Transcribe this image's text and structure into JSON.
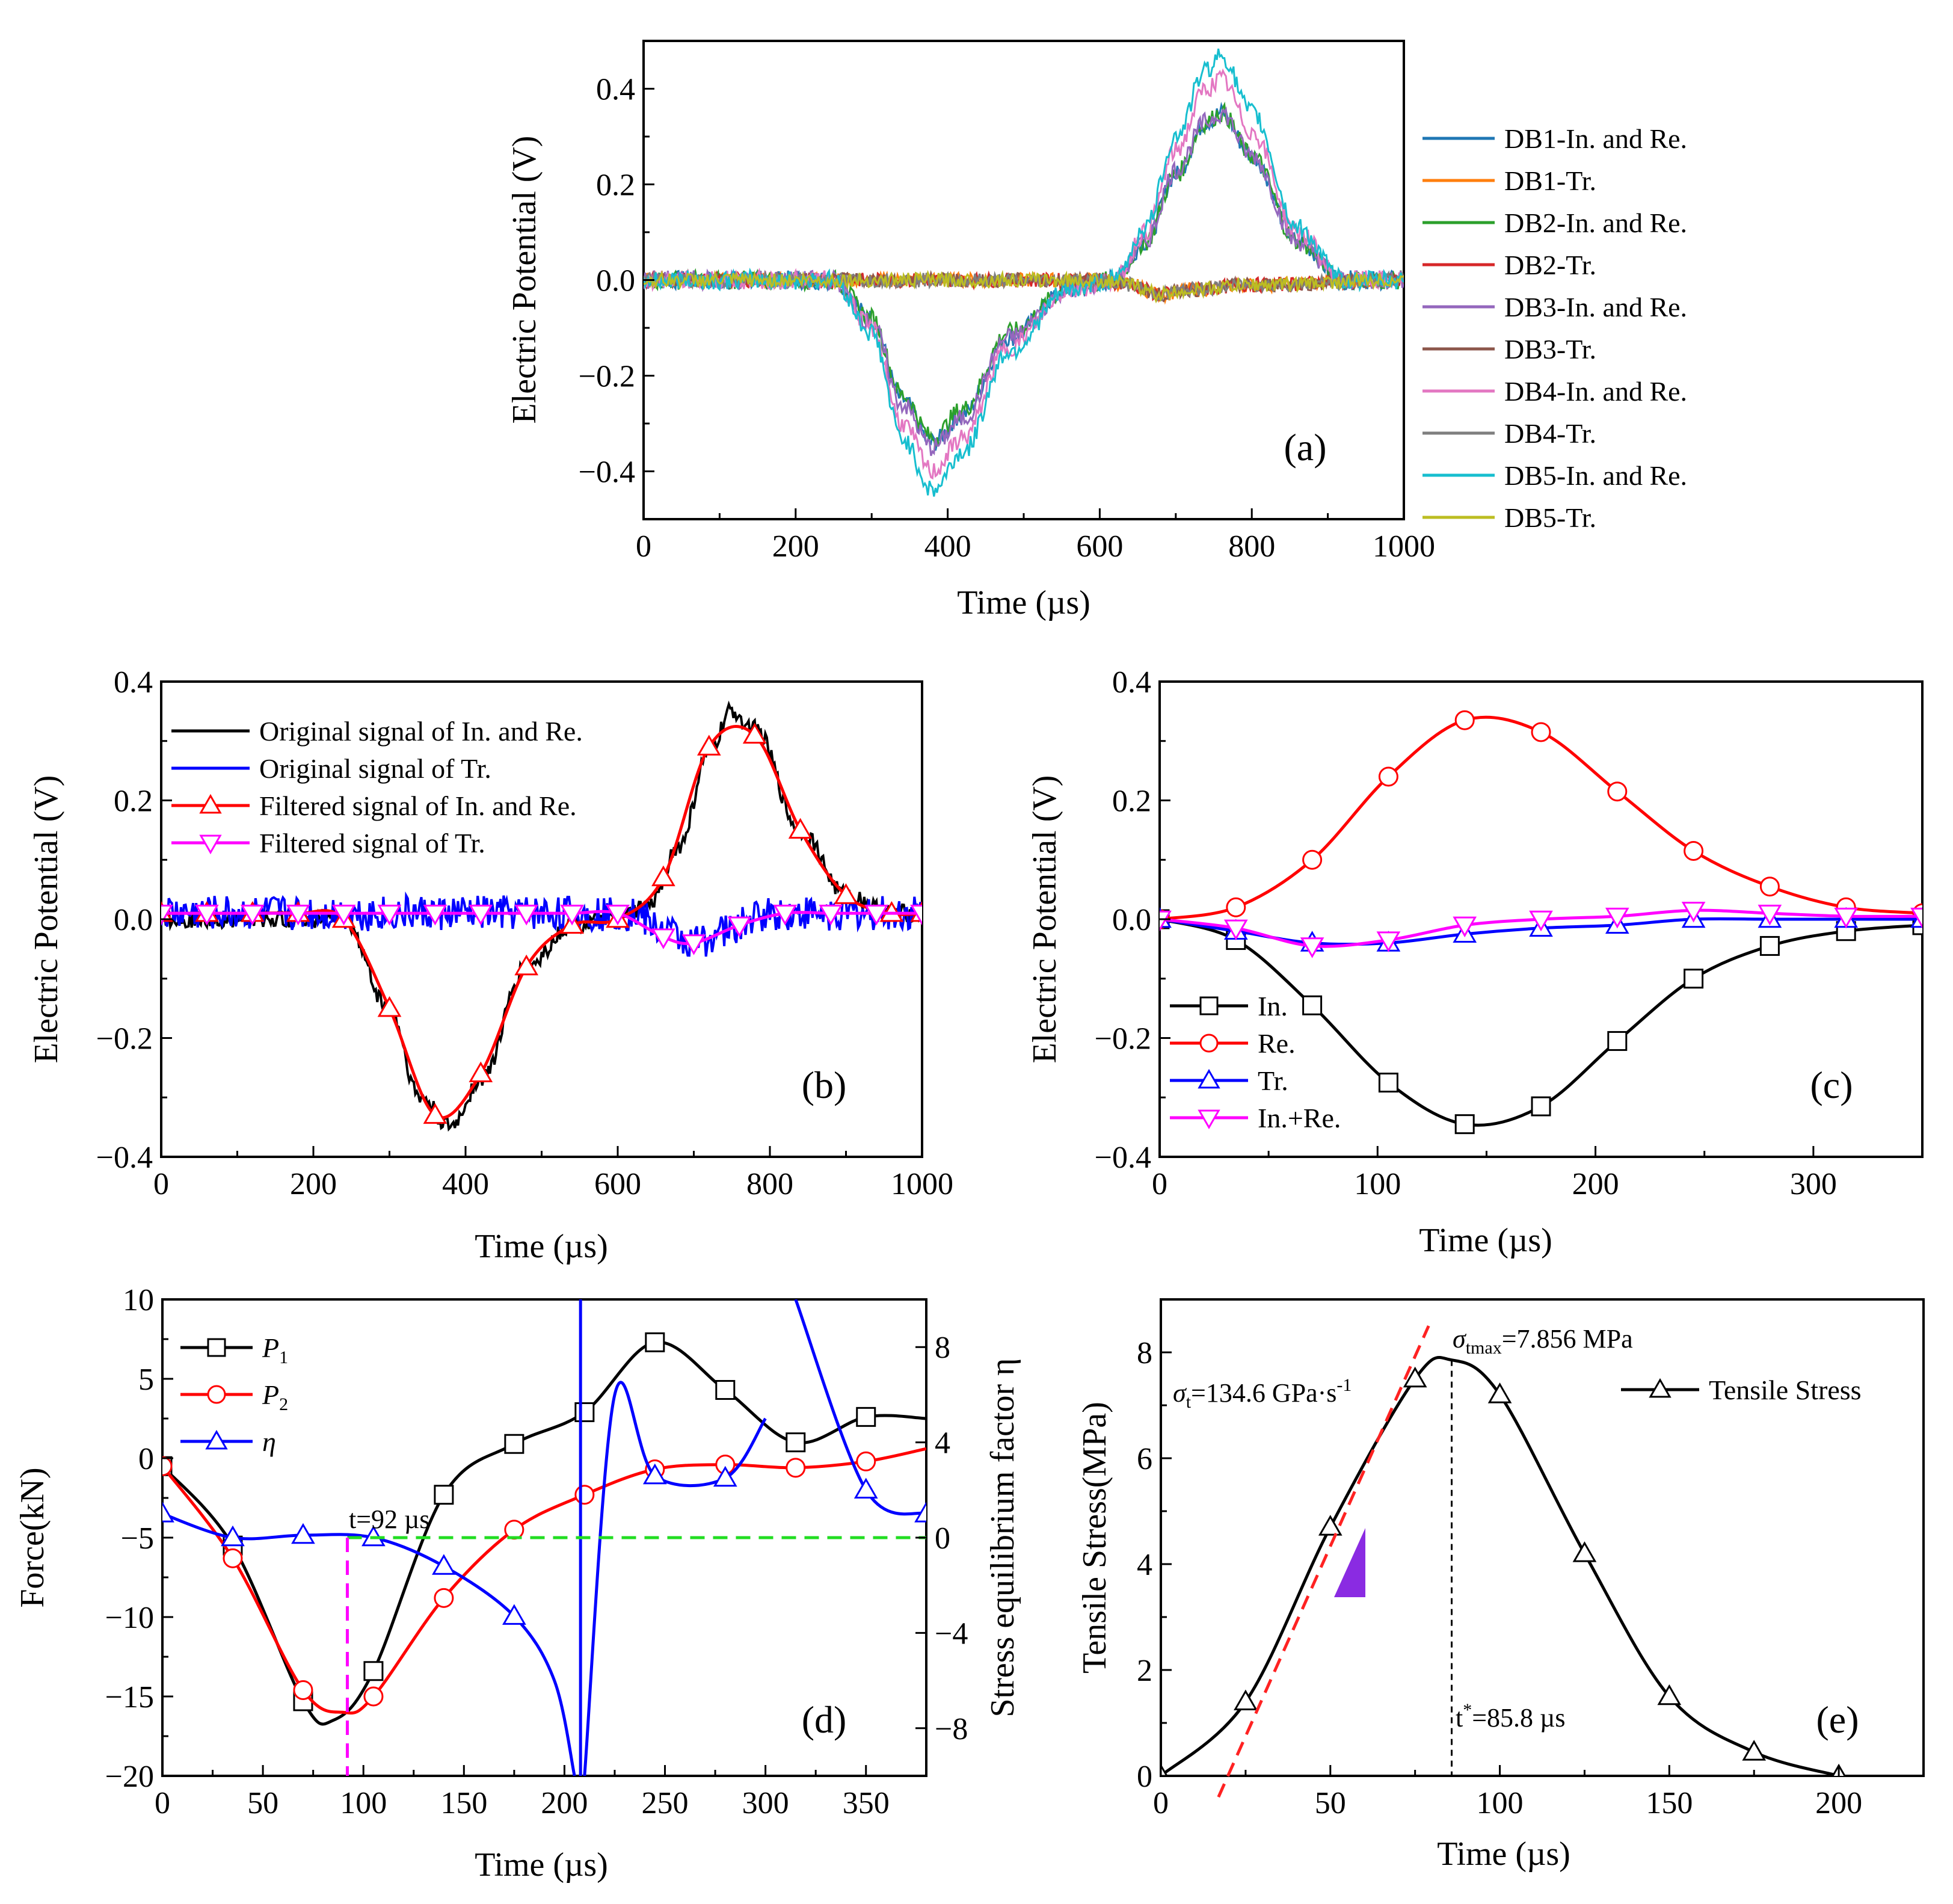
{
  "chart_data": [
    {
      "id": "a",
      "type": "line",
      "panel_label": "(a)",
      "xlabel": "Time (µs)",
      "ylabel": "Electric Potential (V)",
      "xlim": [
        0,
        1000
      ],
      "ylim": [
        -0.5,
        0.5
      ],
      "xticks": [
        "0",
        "200",
        "400",
        "600",
        "800",
        "1000"
      ],
      "yticks": [
        "−0.4",
        "−0.2",
        "0.0",
        "0.2",
        "0.4"
      ],
      "legend_position": "outside-right",
      "series": [
        {
          "name": "DB1-In. and Re.",
          "color": "#1f77b4",
          "x": [
            0,
            250,
            300,
            340,
            380,
            420,
            480,
            560,
            620,
            660,
            700,
            740,
            760,
            800,
            860,
            920,
            1000
          ],
          "y": [
            0,
            0,
            -0.08,
            -0.25,
            -0.34,
            -0.28,
            -0.12,
            -0.02,
            0,
            0.08,
            0.22,
            0.33,
            0.35,
            0.26,
            0.08,
            0,
            0
          ]
        },
        {
          "name": "DB1-Tr.",
          "color": "#ff7f0e",
          "x": [
            0,
            600,
            640,
            680,
            720,
            800,
            1000
          ],
          "y": [
            0,
            0,
            -0.01,
            -0.03,
            -0.02,
            -0.01,
            0
          ]
        },
        {
          "name": "DB2-In. and Re.",
          "color": "#2ca02c",
          "x": [
            0,
            250,
            300,
            340,
            380,
            420,
            480,
            560,
            620,
            660,
            700,
            740,
            760,
            800,
            860,
            920,
            1000
          ],
          "y": [
            0,
            0,
            -0.08,
            -0.24,
            -0.33,
            -0.27,
            -0.11,
            -0.02,
            0,
            0.08,
            0.22,
            0.33,
            0.35,
            0.26,
            0.08,
            0,
            0
          ]
        },
        {
          "name": "DB2-Tr.",
          "color": "#d62728",
          "x": [
            0,
            600,
            640,
            680,
            720,
            800,
            1000
          ],
          "y": [
            0,
            0,
            -0.01,
            -0.03,
            -0.02,
            -0.01,
            0
          ]
        },
        {
          "name": "DB3-In. and Re.",
          "color": "#9467bd",
          "x": [
            0,
            250,
            300,
            340,
            380,
            420,
            480,
            560,
            620,
            660,
            700,
            740,
            760,
            800,
            860,
            920,
            1000
          ],
          "y": [
            0,
            0,
            -0.09,
            -0.26,
            -0.35,
            -0.29,
            -0.12,
            -0.02,
            0,
            0.08,
            0.23,
            0.33,
            0.35,
            0.26,
            0.08,
            0,
            0
          ]
        },
        {
          "name": "DB3-Tr.",
          "color": "#8c564b",
          "x": [
            0,
            600,
            640,
            680,
            720,
            800,
            1000
          ],
          "y": [
            0,
            0,
            -0.01,
            -0.03,
            -0.02,
            -0.01,
            0
          ]
        },
        {
          "name": "DB4-In. and Re.",
          "color": "#e377c2",
          "x": [
            0,
            250,
            300,
            340,
            380,
            420,
            480,
            560,
            620,
            660,
            700,
            740,
            760,
            800,
            860,
            920,
            1000
          ],
          "y": [
            0,
            0,
            -0.1,
            -0.3,
            -0.4,
            -0.33,
            -0.14,
            -0.02,
            0,
            0.1,
            0.27,
            0.4,
            0.42,
            0.31,
            0.1,
            0,
            0
          ]
        },
        {
          "name": "DB4-Tr.",
          "color": "#7f7f7f",
          "x": [
            0,
            600,
            640,
            680,
            720,
            800,
            1000
          ],
          "y": [
            0,
            0,
            -0.01,
            -0.03,
            -0.02,
            -0.01,
            0
          ]
        },
        {
          "name": "DB5-In. and Re.",
          "color": "#17becf",
          "x": [
            0,
            250,
            300,
            340,
            380,
            420,
            480,
            560,
            620,
            660,
            700,
            740,
            760,
            800,
            860,
            920,
            1000
          ],
          "y": [
            0,
            0,
            -0.11,
            -0.33,
            -0.44,
            -0.36,
            -0.15,
            -0.02,
            0,
            0.11,
            0.3,
            0.44,
            0.47,
            0.35,
            0.11,
            0,
            0
          ]
        },
        {
          "name": "DB5-Tr.",
          "color": "#bcbd22",
          "x": [
            0,
            600,
            640,
            680,
            720,
            800,
            1000
          ],
          "y": [
            0,
            0,
            -0.01,
            -0.03,
            -0.02,
            -0.01,
            0
          ]
        }
      ]
    },
    {
      "id": "b",
      "type": "line",
      "panel_label": "(b)",
      "xlabel": "Time (µs)",
      "ylabel": "Electric Potential (V)",
      "xlim": [
        0,
        1000
      ],
      "ylim": [
        -0.4,
        0.4
      ],
      "xticks": [
        "0",
        "200",
        "400",
        "600",
        "800",
        "1000"
      ],
      "yticks": [
        "−0.4",
        "−0.2",
        "0.0",
        "0.2",
        "0.4"
      ],
      "legend_position": "top-left",
      "series": [
        {
          "name": "Original signal of In. and Re.",
          "color": "#000000",
          "marker": "none",
          "x": [
            0,
            240,
            300,
            340,
            380,
            420,
            480,
            540,
            600,
            640,
            680,
            720,
            750,
            780,
            840,
            900,
            960,
            1000
          ],
          "y": [
            0,
            0,
            -0.15,
            -0.3,
            -0.35,
            -0.27,
            -0.08,
            -0.01,
            0,
            0.02,
            0.12,
            0.28,
            0.35,
            0.32,
            0.15,
            0.04,
            0.01,
            0.01
          ]
        },
        {
          "name": "Original signal of Tr.",
          "color": "#0000ff",
          "marker": "none",
          "x": [
            0,
            620,
            660,
            700,
            740,
            800,
            1000
          ],
          "y": [
            0.01,
            0.01,
            -0.02,
            -0.04,
            -0.02,
            0.01,
            0.01
          ]
        },
        {
          "name": "Filtered signal of In. and Re.",
          "color": "#ff0000",
          "marker": "triangle-up",
          "x": [
            0,
            60,
            120,
            180,
            240,
            300,
            360,
            420,
            480,
            540,
            600,
            660,
            720,
            780,
            840,
            900,
            960,
            1000
          ],
          "y": [
            0.01,
            0.01,
            0.01,
            0.01,
            0.0,
            -0.15,
            -0.33,
            -0.26,
            -0.08,
            -0.01,
            0.0,
            0.07,
            0.29,
            0.31,
            0.15,
            0.04,
            0.01,
            0.01
          ]
        },
        {
          "name": "Filtered signal of Tr.",
          "color": "#ff00ff",
          "marker": "triangle-down",
          "x": [
            0,
            60,
            120,
            180,
            240,
            300,
            360,
            420,
            480,
            540,
            600,
            660,
            700,
            760,
            820,
            880,
            940,
            1000
          ],
          "y": [
            0.01,
            0.01,
            0.01,
            0.01,
            0.01,
            0.01,
            0.01,
            0.01,
            0.01,
            0.01,
            0.01,
            -0.03,
            -0.04,
            -0.01,
            0.01,
            0.01,
            0.01,
            0.01
          ]
        }
      ]
    },
    {
      "id": "c",
      "type": "line",
      "panel_label": "(c)",
      "xlabel": "Time (µs)",
      "ylabel": "Electric Potential (V)",
      "xlim": [
        0,
        350
      ],
      "ylim": [
        -0.4,
        0.4
      ],
      "xticks": [
        "0",
        "100",
        "200",
        "300"
      ],
      "yticks": [
        "−0.4",
        "−0.2",
        "0.0",
        "0.2",
        "0.4"
      ],
      "legend_position": "bottom-left",
      "series": [
        {
          "name": "In.",
          "color": "#000000",
          "marker": "square",
          "x": [
            0,
            35,
            70,
            105,
            140,
            175,
            210,
            245,
            280,
            315,
            350
          ],
          "y": [
            0,
            -0.035,
            -0.145,
            -0.275,
            -0.345,
            -0.315,
            -0.205,
            -0.1,
            -0.045,
            -0.02,
            -0.01
          ]
        },
        {
          "name": "Re.",
          "color": "#ff0000",
          "marker": "circle",
          "x": [
            0,
            35,
            70,
            105,
            140,
            175,
            210,
            245,
            280,
            315,
            350
          ],
          "y": [
            0,
            0.02,
            0.1,
            0.24,
            0.335,
            0.315,
            0.215,
            0.115,
            0.055,
            0.02,
            0.01
          ]
        },
        {
          "name": "Tr.",
          "color": "#0000ff",
          "marker": "triangle-up",
          "x": [
            0,
            35,
            70,
            105,
            140,
            175,
            210,
            245,
            280,
            315,
            350
          ],
          "y": [
            0,
            -0.02,
            -0.04,
            -0.04,
            -0.025,
            -0.015,
            -0.01,
            0,
            0,
            0,
            0
          ]
        },
        {
          "name": "In.+Re.",
          "color": "#ff00ff",
          "marker": "triangle-down",
          "x": [
            0,
            35,
            70,
            105,
            140,
            175,
            210,
            245,
            280,
            315,
            350
          ],
          "y": [
            0,
            -0.015,
            -0.045,
            -0.035,
            -0.01,
            0,
            0.005,
            0.015,
            0.01,
            0.005,
            0.005
          ]
        }
      ]
    },
    {
      "id": "d",
      "type": "line",
      "panel_label": "(d)",
      "xlabel": "Time (µs)",
      "ylabel": "Force(kN)",
      "ylabel_right": "Stress equilibrium factor η",
      "xlim": [
        0,
        380
      ],
      "ylim": [
        -20,
        10
      ],
      "ylim_right": [
        -10,
        10
      ],
      "xticks": [
        "0",
        "50",
        "100",
        "150",
        "200",
        "250",
        "300",
        "350"
      ],
      "yticks": [
        "−20",
        "−15",
        "−10",
        "−5",
        "0",
        "5",
        "10"
      ],
      "yticks_right": [
        "−8",
        "−4",
        "0",
        "4",
        "8"
      ],
      "legend_position": "top-left",
      "annotation": "t=92 µs",
      "series": [
        {
          "name": "P",
          "sub": "1",
          "color": "#000000",
          "marker": "square",
          "axis": "left",
          "x": [
            0,
            35,
            70,
            85,
            105,
            140,
            175,
            210,
            245,
            280,
            315,
            350,
            380
          ],
          "y": [
            -0.5,
            -5.5,
            -15.3,
            -16.5,
            -13.4,
            -2.3,
            0.9,
            2.9,
            7.3,
            4.3,
            1.0,
            2.6,
            2.5
          ]
        },
        {
          "name": "P",
          "sub": "2",
          "color": "#ff0000",
          "marker": "circle",
          "axis": "left",
          "x": [
            0,
            35,
            70,
            90,
            105,
            140,
            175,
            210,
            245,
            280,
            315,
            350,
            380
          ],
          "y": [
            -0.5,
            -6.3,
            -14.6,
            -16.0,
            -15.0,
            -8.8,
            -4.5,
            -2.3,
            -0.7,
            -0.4,
            -0.6,
            -0.2,
            0.6
          ]
        },
        {
          "name": "η",
          "sub": "",
          "color": "#0000ff",
          "marker": "triangle-up",
          "axis": "right",
          "x": [
            0,
            35,
            70,
            105,
            140,
            175,
            195,
            205,
            210,
            225,
            245,
            280,
            300,
            315,
            350,
            380
          ],
          "y": [
            1.0,
            0.0,
            0.1,
            0.0,
            -1.2,
            -3.3,
            -6.0,
            -10,
            -10,
            6.0,
            2.6,
            2.5,
            5.0,
            10,
            2.0,
            1.0
          ]
        }
      ]
    },
    {
      "id": "e",
      "type": "line",
      "panel_label": "(e)",
      "xlabel": "Time (µs)",
      "ylabel": "Tensile Stress(MPa)",
      "xlim": [
        0,
        225
      ],
      "ylim": [
        0,
        9
      ],
      "xticks": [
        "0",
        "50",
        "100",
        "150",
        "200"
      ],
      "yticks": [
        "0",
        "2",
        "4",
        "6",
        "8"
      ],
      "legend_position": "top-right",
      "annotation_peak": "σtmax=7.856 MPa",
      "annotation_rate": "σt=134.6 GPa·s-1",
      "annotation_time": "t*=85.8 µs",
      "series": [
        {
          "name": "Tensile Stress",
          "color": "#000000",
          "marker": "triangle-up",
          "x": [
            0,
            25,
            50,
            75,
            85.8,
            100,
            125,
            150,
            175,
            200
          ],
          "y": [
            0,
            1.4,
            4.7,
            7.5,
            7.856,
            7.2,
            4.2,
            1.5,
            0.45,
            0
          ]
        }
      ]
    }
  ]
}
